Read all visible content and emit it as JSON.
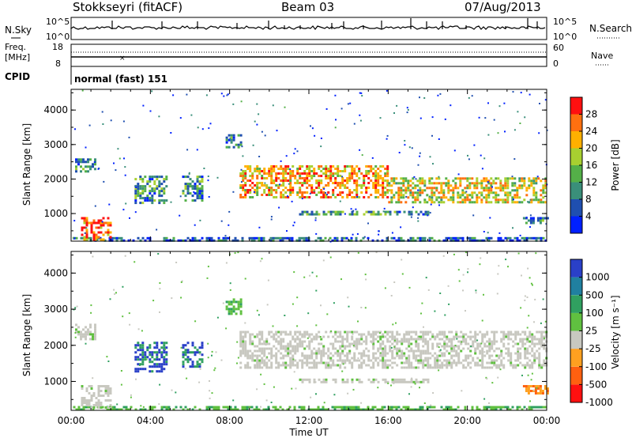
{
  "header": {
    "station": "Stokkseyri (fitACF)",
    "beam": "Beam 03",
    "date": "07/Aug/2013"
  },
  "status": {
    "nsky_label": "N.Sky",
    "nsky_ticks": [
      "10^5",
      "10^0"
    ],
    "nsearch_label": "N.Search",
    "nsearch_ticks": [
      "10^5",
      "10^0"
    ],
    "freq_label": "Freq.",
    "freq_unit": "[MHz]",
    "freq_ticks": [
      "18",
      "8"
    ],
    "nave_label": "Nave",
    "nave_ticks": [
      "60",
      "0"
    ],
    "cpid_label": "CPID",
    "cpid_value": "normal (fast) 151"
  },
  "chart_data": [
    {
      "type": "heatmap",
      "name": "power",
      "ylabel": "Slant Range [km]",
      "yticks": [
        1000,
        2000,
        3000,
        4000
      ],
      "ylim": [
        200,
        4600
      ],
      "xlim": [
        0,
        24
      ],
      "colorbar": {
        "label": "Power [dB]",
        "ticks": [
          "4",
          "8",
          "12",
          "16",
          "20",
          "24",
          "28"
        ],
        "colors": [
          "#0020ff",
          "#1f4fb0",
          "#3a8f7a",
          "#54b048",
          "#a8d030",
          "#ffb000",
          "#ff7010",
          "#ff1010"
        ]
      },
      "echo_regions": [
        {
          "t0": 0.1,
          "t1": 24.0,
          "r0": 200,
          "r1": 320,
          "level": 0.2
        },
        {
          "t0": 0.5,
          "t1": 2.0,
          "r0": 250,
          "r1": 900,
          "level": 0.85
        },
        {
          "t0": 0.2,
          "t1": 1.2,
          "r0": 2200,
          "r1": 2600,
          "level": 0.3
        },
        {
          "t0": 3.2,
          "t1": 4.8,
          "r0": 1300,
          "r1": 2100,
          "level": 0.35
        },
        {
          "t0": 5.6,
          "t1": 6.6,
          "r0": 1400,
          "r1": 2100,
          "level": 0.3
        },
        {
          "t0": 7.8,
          "t1": 8.6,
          "r0": 2900,
          "r1": 3300,
          "level": 0.3
        },
        {
          "t0": 8.5,
          "t1": 16.0,
          "r0": 1500,
          "r1": 2400,
          "level": 0.7
        },
        {
          "t0": 16.0,
          "t1": 24.0,
          "r0": 1350,
          "r1": 2050,
          "level": 0.6
        },
        {
          "t0": 11.5,
          "t1": 18.0,
          "r0": 950,
          "r1": 1080,
          "level": 0.35
        },
        {
          "t0": 22.8,
          "t1": 24.0,
          "r0": 700,
          "r1": 900,
          "level": 0.3
        }
      ]
    },
    {
      "type": "heatmap",
      "name": "velocity",
      "xlabel": "Time UT",
      "ylabel": "Slant Range [km]",
      "xticks": [
        "00:00",
        "04:00",
        "08:00",
        "12:00",
        "16:00",
        "20:00",
        "00:00"
      ],
      "yticks": [
        1000,
        2000,
        3000,
        4000
      ],
      "ylim": [
        200,
        4600
      ],
      "xlim": [
        0,
        24
      ],
      "colorbar": {
        "label": "Velocity [m s⁻¹]",
        "ticks": [
          "1000",
          "500",
          "100",
          "25",
          "-25",
          "-100",
          "-500",
          "-1000"
        ],
        "colors": [
          "#2a40c8",
          "#2080a0",
          "#30a060",
          "#60c040",
          "#c8c8c0",
          "#ffa020",
          "#ff6010",
          "#ff1010"
        ]
      },
      "echo_regions": [
        {
          "t0": 0.1,
          "t1": 24.0,
          "r0": 200,
          "r1": 320,
          "class": "green"
        },
        {
          "t0": 0.5,
          "t1": 2.0,
          "r0": 250,
          "r1": 900,
          "class": "gray"
        },
        {
          "t0": 0.2,
          "t1": 1.2,
          "r0": 2200,
          "r1": 2600,
          "class": "gray"
        },
        {
          "t0": 3.2,
          "t1": 4.8,
          "r0": 1300,
          "r1": 2100,
          "class": "blue"
        },
        {
          "t0": 5.6,
          "t1": 6.6,
          "r0": 1400,
          "r1": 2100,
          "class": "blue"
        },
        {
          "t0": 7.8,
          "t1": 8.6,
          "r0": 2900,
          "r1": 3300,
          "class": "green"
        },
        {
          "t0": 8.5,
          "t1": 24.0,
          "r0": 1400,
          "r1": 2400,
          "class": "gray"
        },
        {
          "t0": 11.5,
          "t1": 18.0,
          "r0": 950,
          "r1": 1080,
          "class": "gray"
        },
        {
          "t0": 22.8,
          "t1": 24.0,
          "r0": 700,
          "r1": 900,
          "class": "orange"
        }
      ]
    }
  ]
}
